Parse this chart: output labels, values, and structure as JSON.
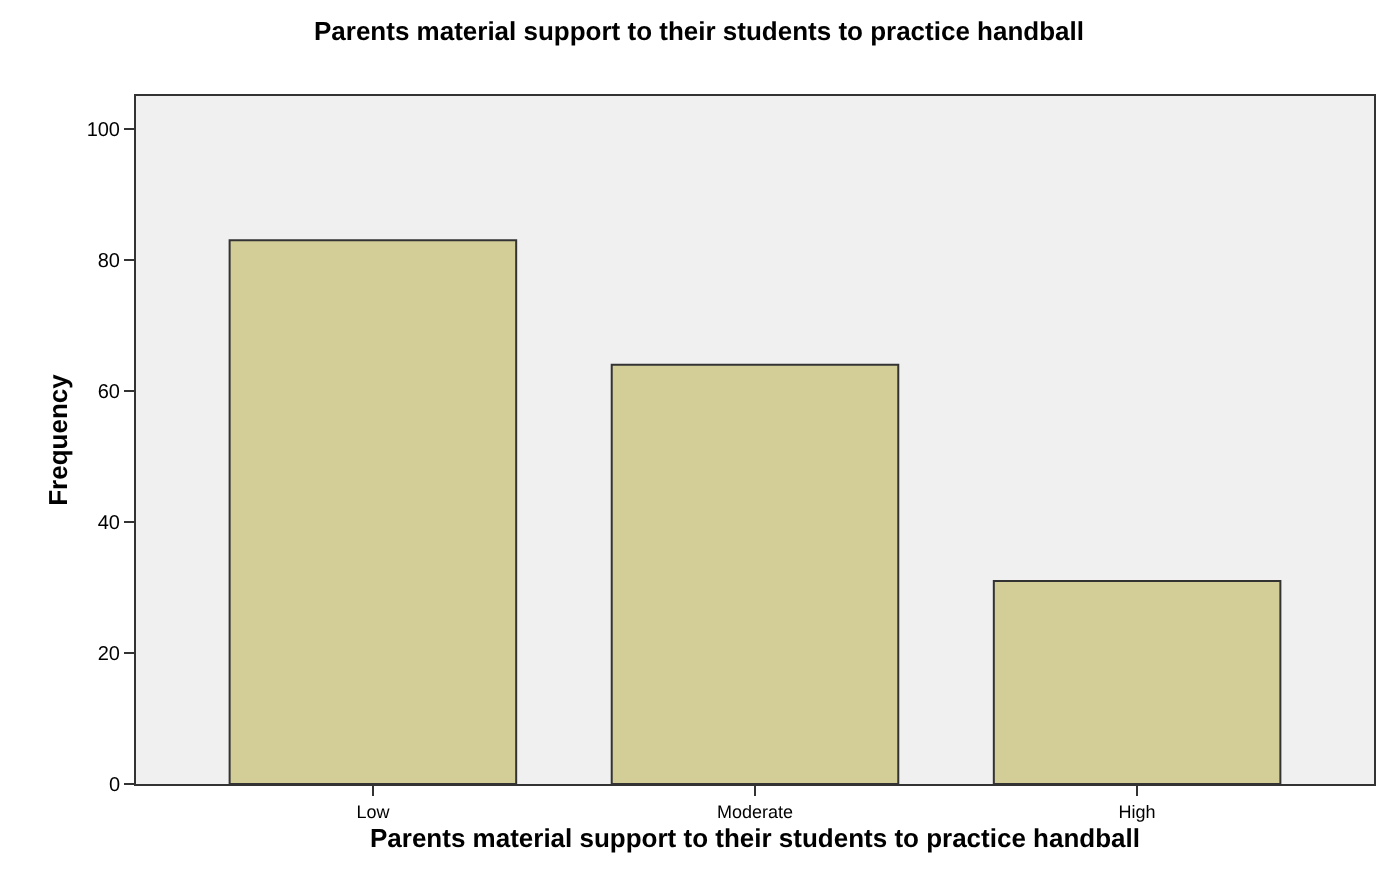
{
  "chart_data": {
    "type": "bar",
    "title": "Parents material support to their students to practice handball",
    "xlabel": "Parents material support to their students to practice handball",
    "ylabel": "Frequency",
    "categories": [
      "Low",
      "Moderate",
      "High"
    ],
    "values": [
      83,
      64,
      31
    ],
    "color": "#d3ce97",
    "ylim": [
      0,
      105
    ],
    "yticks": [
      0,
      20,
      40,
      60,
      80,
      100
    ],
    "grid": false
  }
}
